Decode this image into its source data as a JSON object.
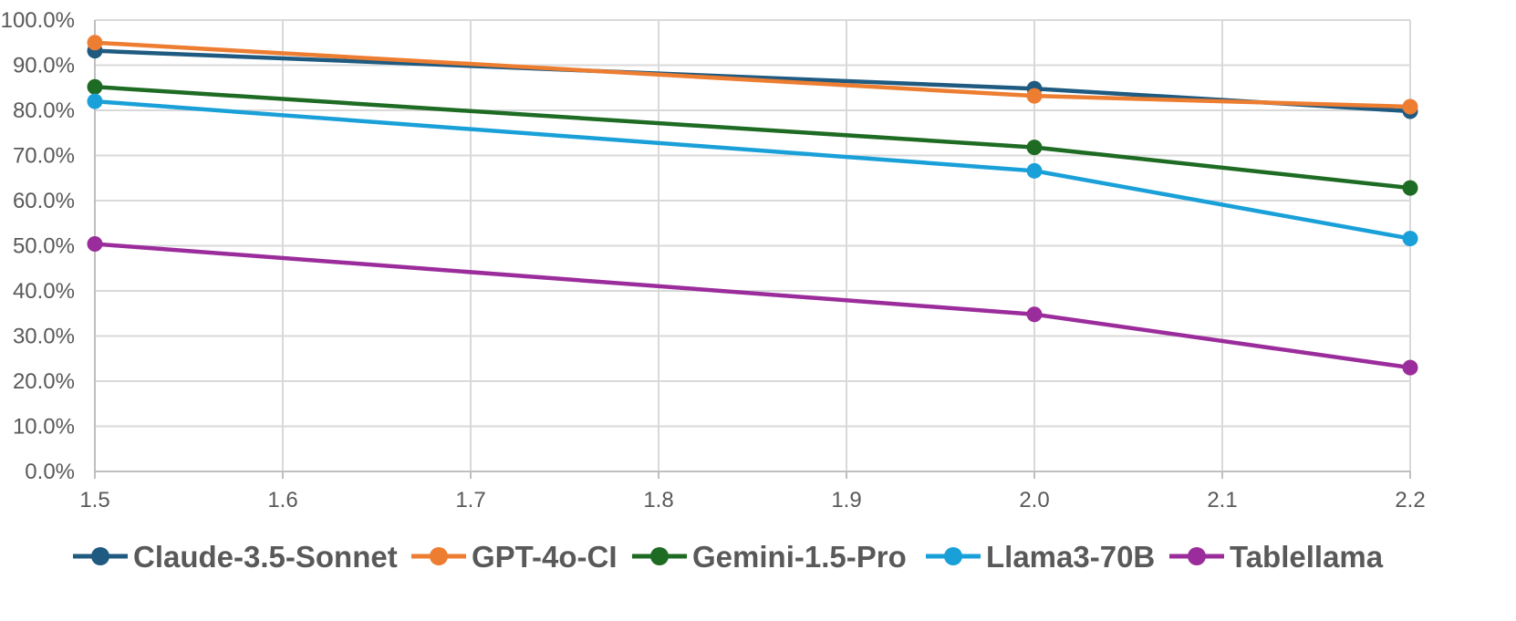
{
  "chart_data": {
    "type": "line",
    "x": [
      1.5,
      2.0,
      2.2
    ],
    "xlim": [
      1.5,
      2.2
    ],
    "ylim": [
      0,
      100
    ],
    "x_ticks": [
      "1.5",
      "1.6",
      "1.7",
      "1.8",
      "1.9",
      "2.0",
      "2.1",
      "2.2"
    ],
    "y_ticks": [
      "0.0%",
      "10.0%",
      "20.0%",
      "30.0%",
      "40.0%",
      "50.0%",
      "60.0%",
      "70.0%",
      "80.0%",
      "90.0%",
      "100.0%"
    ],
    "grid": true,
    "legend_position": "bottom",
    "series": [
      {
        "name": "Claude-3.5-Sonnet",
        "color": "#1f5a80",
        "values": [
          93.2,
          84.8,
          79.8
        ]
      },
      {
        "name": "GPT-4o-CI",
        "color": "#ed7d31",
        "values": [
          95.0,
          83.2,
          80.8
        ]
      },
      {
        "name": "Gemini-1.5-Pro",
        "color": "#1e6b23",
        "values": [
          85.2,
          71.8,
          62.8
        ]
      },
      {
        "name": "Llama3-70B",
        "color": "#1aa0d8",
        "values": [
          82.0,
          66.6,
          51.6
        ]
      },
      {
        "name": "Tablellama",
        "color": "#9b2c9b",
        "values": [
          50.4,
          34.8,
          23.0
        ]
      }
    ]
  }
}
